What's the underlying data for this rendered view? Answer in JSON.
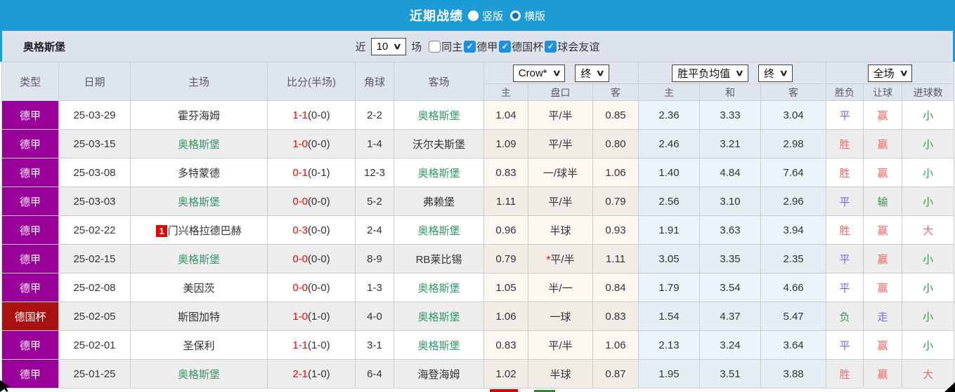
{
  "topbar": {
    "title": "近期战绩",
    "radios": [
      {
        "label": "竖版",
        "checked": false
      },
      {
        "label": "横版",
        "checked": true
      }
    ]
  },
  "filter": {
    "team": "奥格斯堡",
    "near_label": "近",
    "count_value": "10",
    "games_label": "场",
    "checkboxes": [
      {
        "label": "同主",
        "checked": false
      },
      {
        "label": "德甲",
        "checked": true
      },
      {
        "label": "德国杯",
        "checked": true
      },
      {
        "label": "球会友谊",
        "checked": true
      }
    ]
  },
  "table": {
    "main_headers": [
      "类型",
      "日期",
      "主场",
      "比分(半场)",
      "角球",
      "客场"
    ],
    "selects": {
      "odds_source": "Crow*",
      "odds_time": "终",
      "avg_source": "胜平负均值",
      "avg_time": "终",
      "scope": "全场"
    },
    "sub_headers": [
      "主",
      "盘口",
      "客",
      "主",
      "和",
      "客",
      "胜负",
      "让球",
      "进球数"
    ],
    "rows": [
      {
        "type": "德甲",
        "type_bg": "#990099",
        "date": "25-03-29",
        "home": "霍芬海姆",
        "home_color": "#333333",
        "home_badge": "",
        "score": "1-1",
        "half": "(0-0)",
        "corner": "2-2",
        "away": "奥格斯堡",
        "away_color": "#339966",
        "crow_home": "1.04",
        "handicap": "平/半",
        "handicap_star": false,
        "crow_away": "0.85",
        "avg_home": "2.36",
        "avg_draw": "3.33",
        "avg_away": "3.04",
        "result": "平",
        "result_color": "#6b6bee",
        "let": "赢",
        "let_color": "#f26a6a",
        "goals": "小",
        "goals_color": "#3f8f55"
      },
      {
        "type": "德甲",
        "type_bg": "#990099",
        "date": "25-03-15",
        "home": "奥格斯堡",
        "home_color": "#339966",
        "home_badge": "",
        "score": "1-0",
        "half": "(0-0)",
        "corner": "1-4",
        "away": "沃尔夫斯堡",
        "away_color": "#333333",
        "crow_home": "1.09",
        "handicap": "平/半",
        "handicap_star": false,
        "crow_away": "0.80",
        "avg_home": "2.46",
        "avg_draw": "3.21",
        "avg_away": "2.98",
        "result": "胜",
        "result_color": "#f26a6a",
        "let": "赢",
        "let_color": "#f26a6a",
        "goals": "小",
        "goals_color": "#3f8f55"
      },
      {
        "type": "德甲",
        "type_bg": "#990099",
        "date": "25-03-08",
        "home": "多特蒙德",
        "home_color": "#333333",
        "home_badge": "",
        "score": "0-1",
        "half": "(0-1)",
        "corner": "12-3",
        "away": "奥格斯堡",
        "away_color": "#339966",
        "crow_home": "0.83",
        "handicap": "一/球半",
        "handicap_star": false,
        "crow_away": "1.06",
        "avg_home": "1.40",
        "avg_draw": "4.84",
        "avg_away": "7.64",
        "result": "胜",
        "result_color": "#f26a6a",
        "let": "赢",
        "let_color": "#f26a6a",
        "goals": "小",
        "goals_color": "#3f8f55"
      },
      {
        "type": "德甲",
        "type_bg": "#990099",
        "date": "25-03-03",
        "home": "奥格斯堡",
        "home_color": "#339966",
        "home_badge": "",
        "score": "0-0",
        "half": "(0-0)",
        "corner": "5-2",
        "away": "弗赖堡",
        "away_color": "#333333",
        "crow_home": "1.11",
        "handicap": "平/半",
        "handicap_star": false,
        "crow_away": "0.79",
        "avg_home": "2.56",
        "avg_draw": "3.10",
        "avg_away": "2.96",
        "result": "平",
        "result_color": "#6b6bee",
        "let": "输",
        "let_color": "#3f8f55",
        "goals": "小",
        "goals_color": "#3f8f55"
      },
      {
        "type": "德甲",
        "type_bg": "#990099",
        "date": "25-02-22",
        "home": "门兴格拉德巴赫",
        "home_color": "#333333",
        "home_badge": "1",
        "score": "0-3",
        "half": "(0-0)",
        "corner": "2-4",
        "away": "奥格斯堡",
        "away_color": "#339966",
        "crow_home": "0.96",
        "handicap": "半球",
        "handicap_star": false,
        "crow_away": "0.93",
        "avg_home": "1.91",
        "avg_draw": "3.63",
        "avg_away": "3.94",
        "result": "胜",
        "result_color": "#f26a6a",
        "let": "赢",
        "let_color": "#f26a6a",
        "goals": "大",
        "goals_color": "#f26a6a"
      },
      {
        "type": "德甲",
        "type_bg": "#990099",
        "date": "25-02-15",
        "home": "奥格斯堡",
        "home_color": "#339966",
        "home_badge": "",
        "score": "0-0",
        "half": "(0-0)",
        "corner": "8-9",
        "away": "RB莱比锡",
        "away_color": "#333333",
        "crow_home": "0.79",
        "handicap": "平/半",
        "handicap_star": true,
        "crow_away": "1.11",
        "avg_home": "3.05",
        "avg_draw": "3.35",
        "avg_away": "2.35",
        "result": "平",
        "result_color": "#6b6bee",
        "let": "赢",
        "let_color": "#f26a6a",
        "goals": "小",
        "goals_color": "#3f8f55"
      },
      {
        "type": "德甲",
        "type_bg": "#990099",
        "date": "25-02-08",
        "home": "美因茨",
        "home_color": "#333333",
        "home_badge": "",
        "score": "0-0",
        "half": "(0-0)",
        "corner": "1-3",
        "away": "奥格斯堡",
        "away_color": "#339966",
        "crow_home": "1.05",
        "handicap": "半/一",
        "handicap_star": false,
        "crow_away": "0.84",
        "avg_home": "1.79",
        "avg_draw": "3.54",
        "avg_away": "4.66",
        "result": "平",
        "result_color": "#6b6bee",
        "let": "赢",
        "let_color": "#f26a6a",
        "goals": "小",
        "goals_color": "#3f8f55"
      },
      {
        "type": "德国杯",
        "type_bg": "#aa1111",
        "date": "25-02-05",
        "home": "斯图加特",
        "home_color": "#333333",
        "home_badge": "",
        "score": "1-0",
        "half": "(1-0)",
        "corner": "4-0",
        "away": "奥格斯堡",
        "away_color": "#339966",
        "crow_home": "1.06",
        "handicap": "一球",
        "handicap_star": false,
        "crow_away": "0.83",
        "avg_home": "1.54",
        "avg_draw": "4.37",
        "avg_away": "5.47",
        "result": "负",
        "result_color": "#3f8f55",
        "let": "走",
        "let_color": "#6b6bee",
        "goals": "小",
        "goals_color": "#3f8f55"
      },
      {
        "type": "德甲",
        "type_bg": "#990099",
        "date": "25-02-01",
        "home": "圣保利",
        "home_color": "#333333",
        "home_badge": "",
        "score": "1-1",
        "half": "(1-0)",
        "corner": "3-1",
        "away": "奥格斯堡",
        "away_color": "#339966",
        "crow_home": "0.83",
        "handicap": "平/半",
        "handicap_star": false,
        "crow_away": "1.06",
        "avg_home": "2.13",
        "avg_draw": "3.24",
        "avg_away": "3.64",
        "result": "平",
        "result_color": "#6b6bee",
        "let": "赢",
        "let_color": "#f26a6a",
        "goals": "小",
        "goals_color": "#3f8f55"
      },
      {
        "type": "德甲",
        "type_bg": "#990099",
        "date": "25-01-25",
        "home": "奥格斯堡",
        "home_color": "#339966",
        "home_badge": "",
        "score": "2-1",
        "half": "(1-0)",
        "corner": "6-4",
        "away": "海登海姆",
        "away_color": "#333333",
        "crow_home": "1.02",
        "handicap": "半球",
        "handicap_star": false,
        "crow_away": "0.87",
        "avg_home": "1.95",
        "avg_draw": "3.51",
        "avg_away": "3.88",
        "result": "胜",
        "result_color": "#f26a6a",
        "let": "赢",
        "let_color": "#f26a6a",
        "goals": "大",
        "goals_color": "#f26a6a"
      }
    ]
  },
  "legend_swatches": [
    "#dd0000",
    "#338833"
  ]
}
